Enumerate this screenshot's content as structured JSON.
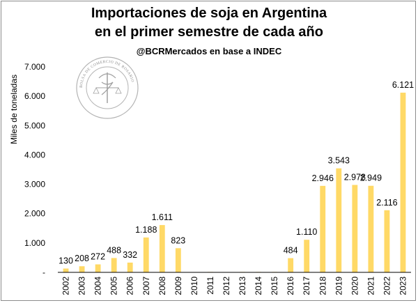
{
  "header": {
    "title_line1": "Importaciones de soja en Argentina",
    "title_line2": "en el primer semestre de cada año",
    "source": "@BCRMercados en base a INDEC"
  },
  "watermark": {
    "text": "BOLSA DE COMERCIO DE ROSARIO"
  },
  "colors": {
    "bar": "#ffd966",
    "axis": "#000000"
  },
  "chart_data": {
    "type": "bar",
    "title": "Importaciones de soja en Argentina en el primer semestre de cada año",
    "subtitle": "@BCRMercados en base a INDEC",
    "xlabel": "",
    "ylabel": "Miles de toneladas",
    "ylim": [
      0,
      7000
    ],
    "yticks": [
      0,
      1000,
      2000,
      3000,
      4000,
      5000,
      6000,
      7000
    ],
    "ytick_labels": [
      "-",
      "1.000",
      "2.000",
      "3.000",
      "4.000",
      "5.000",
      "6.000",
      "7.000"
    ],
    "categories": [
      "2002",
      "2003",
      "2004",
      "2005",
      "2006",
      "2007",
      "2008",
      "2009",
      "2010",
      "2011",
      "2012",
      "2013",
      "2014",
      "2015",
      "2016",
      "2017",
      "2018",
      "2019",
      "2020",
      "2021",
      "2022",
      "2023"
    ],
    "values": [
      130,
      208,
      272,
      488,
      332,
      1188,
      1611,
      823,
      0,
      15,
      5,
      15,
      15,
      15,
      484,
      1110,
      2946,
      3543,
      2978,
      2949,
      2116,
      6121
    ],
    "data_labels": [
      "130",
      "208",
      "272",
      "488",
      "332",
      "1.188",
      "1.611",
      "823",
      "",
      "",
      "",
      "",
      "",
      "",
      "484",
      "1.110",
      "2.946",
      "3.543",
      "2.978",
      "2.949",
      "2.116",
      "6.121"
    ],
    "grid": false,
    "legend": "none"
  }
}
